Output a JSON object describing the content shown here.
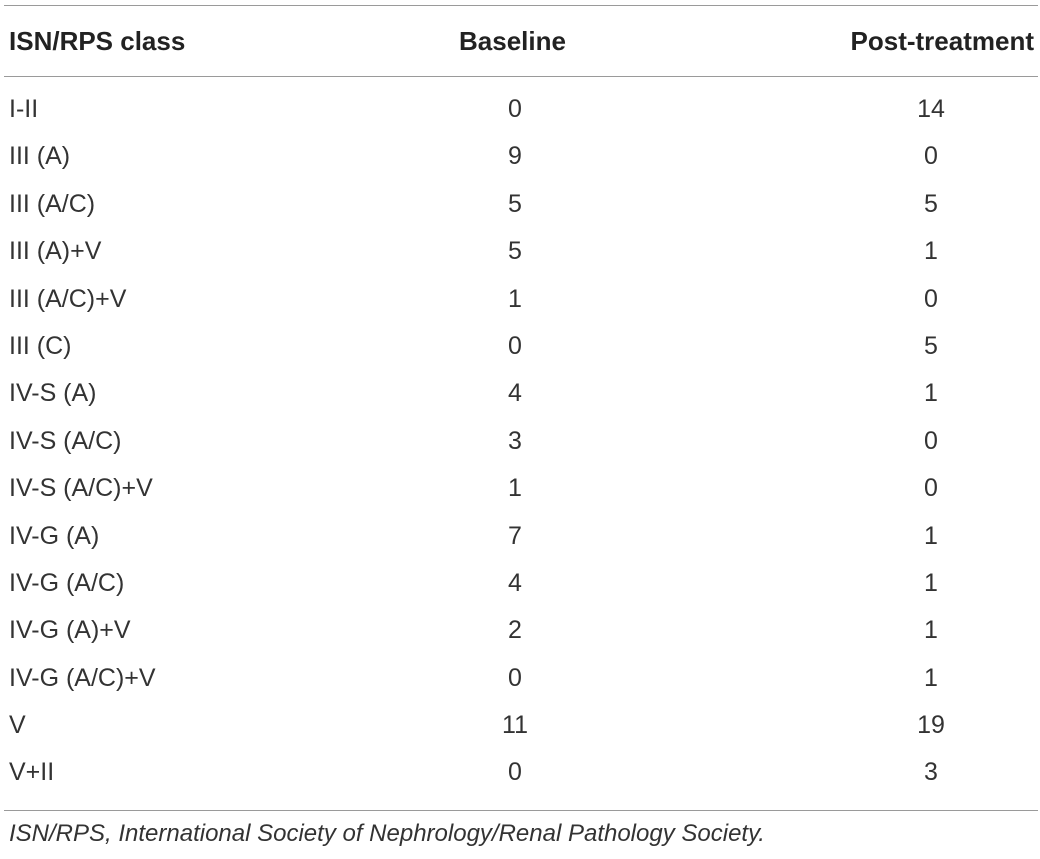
{
  "table": {
    "headers": {
      "class": "ISN/RPS class",
      "baseline": "Baseline",
      "post": "Post-treatment"
    },
    "rows": [
      {
        "class": "I-II",
        "baseline": "0",
        "post": "14"
      },
      {
        "class": "III (A)",
        "baseline": "9",
        "post": "0"
      },
      {
        "class": "III (A/C)",
        "baseline": "5",
        "post": "5"
      },
      {
        "class": "III (A)+V",
        "baseline": "5",
        "post": "1"
      },
      {
        "class": "III (A/C)+V",
        "baseline": "1",
        "post": "0"
      },
      {
        "class": "III (C)",
        "baseline": "0",
        "post": "5"
      },
      {
        "class": "IV-S (A)",
        "baseline": "4",
        "post": "1"
      },
      {
        "class": "IV-S (A/C)",
        "baseline": "3",
        "post": "0"
      },
      {
        "class": "IV-S (A/C)+V",
        "baseline": "1",
        "post": "0"
      },
      {
        "class": "IV-G (A)",
        "baseline": "7",
        "post": "1"
      },
      {
        "class": "IV-G (A/C)",
        "baseline": "4",
        "post": "1"
      },
      {
        "class": "IV-G (A)+V",
        "baseline": "2",
        "post": "1"
      },
      {
        "class": "IV-G (A/C)+V",
        "baseline": "0",
        "post": "1"
      },
      {
        "class": "V",
        "baseline": "11",
        "post": "19"
      },
      {
        "class": "V+II",
        "baseline": "0",
        "post": "3"
      }
    ],
    "footnote": "ISN/RPS, International Society of Nephrology/Renal Pathology Society."
  }
}
